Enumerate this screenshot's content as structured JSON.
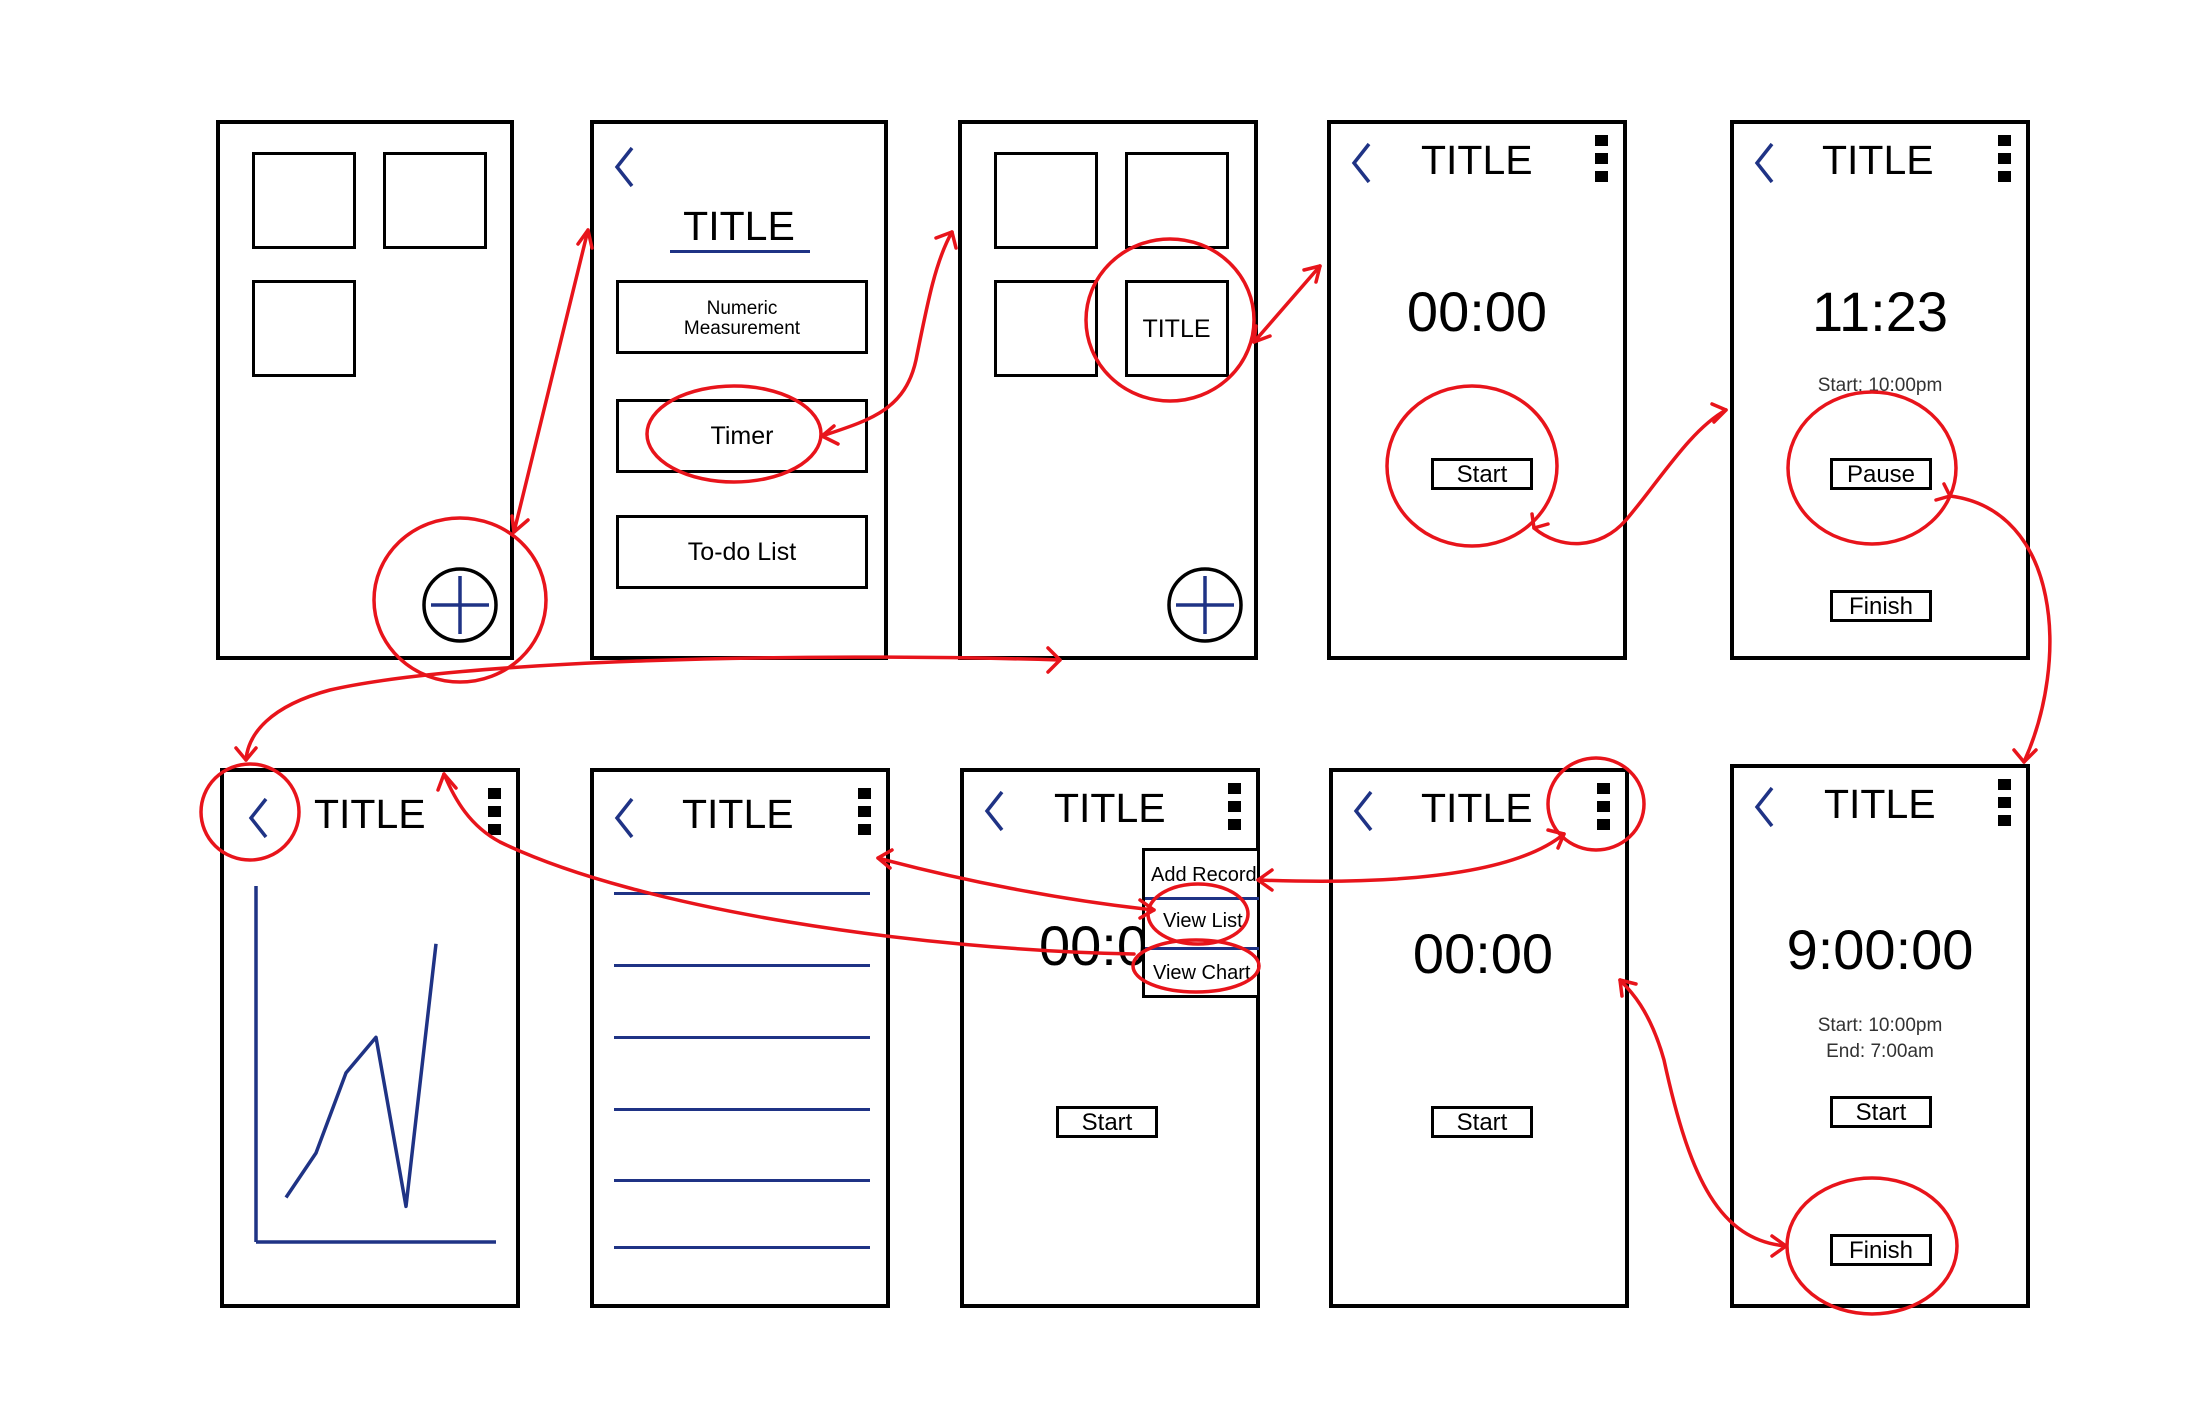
{
  "generic": {
    "title": "TITLE"
  },
  "screen2": {
    "title": "TITLE",
    "opt1_line1": "Numeric",
    "opt1_line2": "Measurement",
    "opt2": "Timer",
    "opt3": "To-do List"
  },
  "screen3": {
    "tile_label": "TITLE"
  },
  "screen4": {
    "title": "TITLE",
    "time": "00:00",
    "start": "Start"
  },
  "screen5": {
    "title": "TITLE",
    "time": "11:23",
    "start_info": "Start: 10:00pm",
    "pause": "Pause",
    "finish": "Finish"
  },
  "screen6": {
    "title": "TITLE"
  },
  "screen7": {
    "title": "TITLE"
  },
  "screen8": {
    "title": "TITLE",
    "time": "00:0",
    "start": "Start",
    "menu_add": "Add Record",
    "menu_list": "View List",
    "menu_chart": "View Chart"
  },
  "screen9": {
    "title": "TITLE",
    "time": "00:00",
    "start": "Start"
  },
  "screen10": {
    "title": "TITLE",
    "time": "9:00:00",
    "start_info": "Start: 10:00pm",
    "end_info": "End: 7:00am",
    "start": "Start",
    "finish": "Finish"
  },
  "colors": {
    "frame": "#000000",
    "accent_blue": "#1f3385",
    "annotation_red": "#e8141b"
  },
  "chart_data": {
    "type": "line",
    "x": [
      1,
      2,
      3,
      4,
      5,
      6
    ],
    "values": [
      2,
      4,
      7.6,
      9.2,
      1.6,
      13.4
    ],
    "xlim": [
      0,
      8
    ],
    "ylim": [
      0,
      16
    ],
    "grid": false
  }
}
